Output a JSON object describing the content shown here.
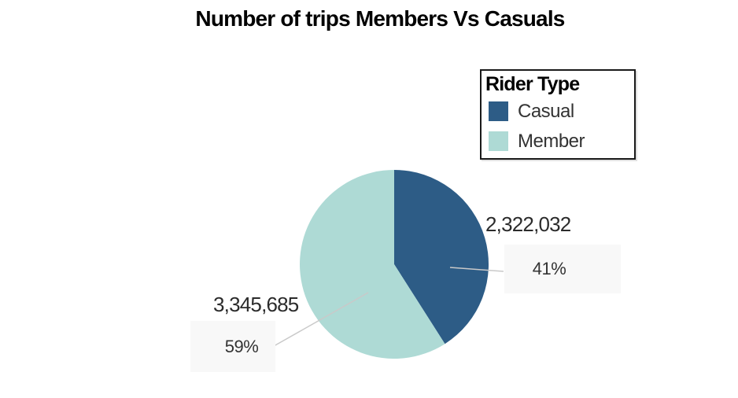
{
  "title": "Number of trips Members Vs Casuals",
  "legend": {
    "title": "Rider Type",
    "items": [
      {
        "label": "Casual",
        "color": "#2d5c86"
      },
      {
        "label": "Member",
        "color": "#aedad5"
      }
    ]
  },
  "chart_data": {
    "type": "pie",
    "title": "Number of trips Members Vs Casuals",
    "legend_title": "Rider Type",
    "legend_position": "top-right",
    "categories": [
      "Casual",
      "Member"
    ],
    "values": [
      2322032,
      3345685
    ],
    "value_labels": [
      "2,322,032",
      "3,345,685"
    ],
    "percentages": [
      41,
      59
    ],
    "pct_labels": [
      "41%",
      "59%"
    ],
    "colors": [
      "#2d5c86",
      "#aedad5"
    ],
    "start_angle_deg": 0,
    "direction": "clockwise",
    "annotation_box_color": "#f8f8f8",
    "leader_line_color": "#c9c9c9"
  }
}
